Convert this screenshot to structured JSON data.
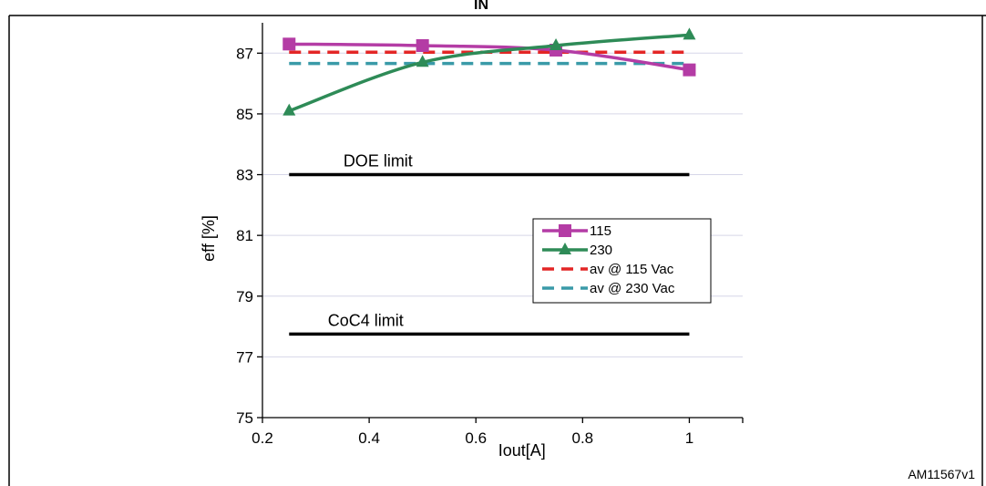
{
  "figure": {
    "title_fragment": "IN",
    "reference_id": "AM11567v1"
  },
  "chart_data": {
    "type": "line",
    "title": "",
    "xlabel": "Iout[A]",
    "ylabel": "eff [%]",
    "xlim": [
      0.2,
      1.1
    ],
    "ylim": [
      75,
      88
    ],
    "xticks": [
      0.2,
      0.4,
      0.6,
      0.8,
      1
    ],
    "xtick_labels": [
      "0.2",
      "0.4",
      "0.6",
      "0.8",
      "1"
    ],
    "yticks": [
      75,
      77,
      79,
      81,
      83,
      85,
      87
    ],
    "ytick_labels": [
      "75",
      "77",
      "79",
      "81",
      "83",
      "85",
      "87"
    ],
    "grid": "horizontal",
    "legend_position": "right-center",
    "series": [
      {
        "name": "115",
        "color": "#b43ca5",
        "marker": "square",
        "style": "solid",
        "x": [
          0.25,
          0.5,
          0.75,
          1
        ],
        "y": [
          87.3,
          87.25,
          87.1,
          86.45
        ]
      },
      {
        "name": "230",
        "color": "#2e8b57",
        "marker": "triangle",
        "style": "solid",
        "x": [
          0.25,
          0.5,
          0.75,
          1
        ],
        "y": [
          85.1,
          86.7,
          87.25,
          87.6
        ]
      },
      {
        "name": "av @ 115 Vac",
        "color": "#e32626",
        "marker": "none",
        "style": "dashed",
        "x": [
          0.25,
          1
        ],
        "y": [
          87.03,
          87.03
        ]
      },
      {
        "name": "av @ 230 Vac",
        "color": "#3a9aa8",
        "marker": "none",
        "style": "dashed",
        "x": [
          0.25,
          1
        ],
        "y": [
          86.66,
          86.66
        ]
      }
    ],
    "reference_lines": [
      {
        "label": "DOE limit",
        "y": 83.0,
        "x": [
          0.25,
          1
        ],
        "color": "#000000"
      },
      {
        "label": "CoC4 limit",
        "y": 77.75,
        "x": [
          0.25,
          1
        ],
        "color": "#000000"
      }
    ]
  }
}
